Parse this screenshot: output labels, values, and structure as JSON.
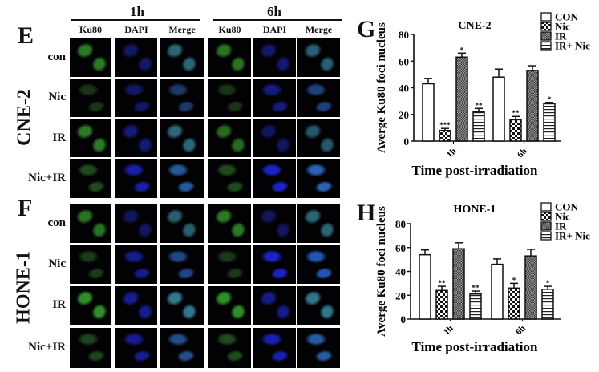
{
  "figure": {
    "panels": {
      "E": "E",
      "F": "F",
      "G": "G",
      "H": "H"
    },
    "microscopy": {
      "time_points": [
        "1h",
        "6h"
      ],
      "channels": [
        "Ku80",
        "DAPI",
        "Merge"
      ],
      "treatments": [
        "con",
        "Nic",
        "IR",
        "Nic+IR"
      ],
      "cell_lines": [
        "CNE-2",
        "HONE-1"
      ]
    }
  },
  "chart_data": [
    {
      "panel": "G",
      "type": "bar",
      "title": "CNE-2",
      "xlabel": "Time post-irradiation",
      "ylabel": "Averge Ku80 foci nucleus",
      "categories": [
        "1h",
        "6h"
      ],
      "ylim": [
        0,
        80
      ],
      "yticks": [
        0,
        20,
        40,
        60,
        80
      ],
      "grid": false,
      "legend_position": "top-right",
      "series": [
        {
          "name": "CON",
          "pattern": "white",
          "values": [
            43,
            48
          ],
          "errors": [
            4,
            6
          ],
          "significance": [
            "",
            ""
          ]
        },
        {
          "name": "Nic",
          "pattern": "checker",
          "values": [
            8,
            16
          ],
          "errors": [
            1.5,
            2.5
          ],
          "significance": [
            "***",
            "**"
          ]
        },
        {
          "name": "IR",
          "pattern": "fine-grid",
          "values": [
            63,
            53
          ],
          "errors": [
            3,
            3.5
          ],
          "significance": [
            "*",
            ""
          ]
        },
        {
          "name": "IR+ Nic",
          "pattern": "horizontal-lines",
          "values": [
            22,
            28
          ],
          "errors": [
            2.5,
            1
          ],
          "significance": [
            "**",
            "*"
          ]
        }
      ]
    },
    {
      "panel": "H",
      "type": "bar",
      "title": "HONE-1",
      "xlabel": "Time post-irradiation",
      "ylabel": "Averge Ku80 foci nucleus",
      "categories": [
        "1h",
        "6h"
      ],
      "ylim": [
        0,
        80
      ],
      "yticks": [
        0,
        20,
        40,
        60,
        80
      ],
      "grid": false,
      "legend_position": "top-right",
      "series": [
        {
          "name": "CON",
          "pattern": "white",
          "values": [
            54,
            46
          ],
          "errors": [
            4,
            4.5
          ],
          "significance": [
            "",
            ""
          ]
        },
        {
          "name": "Nic",
          "pattern": "checker",
          "values": [
            24,
            26
          ],
          "errors": [
            3.5,
            4
          ],
          "significance": [
            "**",
            "*"
          ]
        },
        {
          "name": "IR",
          "pattern": "fine-grid",
          "values": [
            59,
            53
          ],
          "errors": [
            5,
            5.5
          ],
          "significance": [
            "",
            ""
          ]
        },
        {
          "name": "IR+ Nic",
          "pattern": "horizontal-lines",
          "values": [
            21,
            25
          ],
          "errors": [
            2.5,
            2.5
          ],
          "significance": [
            "**",
            "*"
          ]
        }
      ]
    }
  ]
}
